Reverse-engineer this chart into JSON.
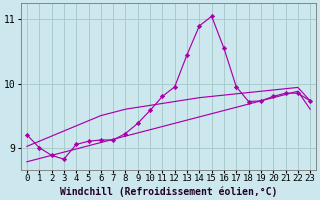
{
  "xlabel": "Windchill (Refroidissement éolien,°C)",
  "background_color": "#cce8ee",
  "grid_color": "#aacccc",
  "line_color": "#aa00aa",
  "x": [
    0,
    1,
    2,
    3,
    4,
    5,
    6,
    7,
    8,
    9,
    10,
    11,
    12,
    13,
    14,
    15,
    16,
    17,
    18,
    19,
    20,
    21,
    22,
    23
  ],
  "y_main": [
    9.2,
    9.0,
    8.88,
    8.82,
    9.05,
    9.1,
    9.12,
    9.12,
    9.22,
    9.38,
    9.58,
    9.8,
    9.95,
    10.45,
    10.9,
    11.05,
    10.55,
    9.95,
    9.72,
    9.73,
    9.8,
    9.85,
    9.85,
    9.73
  ],
  "y_upper": [
    9.02,
    9.1,
    9.18,
    9.26,
    9.34,
    9.42,
    9.5,
    9.55,
    9.6,
    9.63,
    9.66,
    9.69,
    9.72,
    9.75,
    9.78,
    9.8,
    9.82,
    9.84,
    9.86,
    9.88,
    9.9,
    9.92,
    9.94,
    9.73
  ],
  "y_lower": [
    8.78,
    8.83,
    8.88,
    8.93,
    8.98,
    9.03,
    9.08,
    9.13,
    9.18,
    9.23,
    9.28,
    9.33,
    9.38,
    9.43,
    9.48,
    9.53,
    9.58,
    9.63,
    9.68,
    9.73,
    9.78,
    9.83,
    9.88,
    9.6
  ],
  "ylim": [
    8.65,
    11.25
  ],
  "xlim": [
    -0.5,
    23.5
  ],
  "yticks": [
    9,
    10,
    11
  ],
  "xticks": [
    0,
    1,
    2,
    3,
    4,
    5,
    6,
    7,
    8,
    9,
    10,
    11,
    12,
    13,
    14,
    15,
    16,
    17,
    18,
    19,
    20,
    21,
    22,
    23
  ],
  "xlabel_fontsize": 7,
  "tick_fontsize": 6.5,
  "ytick_fontsize": 7
}
